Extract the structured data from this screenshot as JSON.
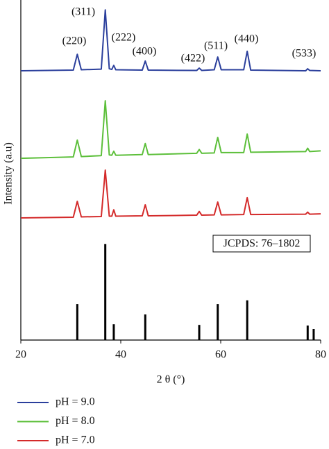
{
  "chart_data": {
    "type": "line",
    "x_label": "2 θ (°)",
    "y_label": "Intensity (a.u)",
    "xlim": [
      20,
      80
    ],
    "xticks": [
      20,
      40,
      60,
      80
    ],
    "ylim": [
      0,
      100
    ],
    "annotations": [
      "(220)",
      "(311)",
      "(222)",
      "(400)",
      "(422)",
      "(511)",
      "(440)",
      "(533)"
    ],
    "x": [
      20,
      30.5,
      31.3,
      32.1,
      36.1,
      36.9,
      37.7,
      38.2,
      38.6,
      39.0,
      44.3,
      44.9,
      45.5,
      55.2,
      55.7,
      56.2,
      58.7,
      59.4,
      60.1,
      64.6,
      65.3,
      66.0,
      77.0,
      77.4,
      77.8,
      80
    ],
    "series": [
      {
        "name": "pH = 9.0",
        "color": "#2b3f9c",
        "values": [
          80.0,
          80.2,
          84.9,
          80.3,
          80.5,
          98.1,
          80.6,
          80.4,
          81.6,
          80.3,
          80.2,
          82.9,
          80.2,
          80.1,
          80.8,
          80.1,
          80.3,
          84.1,
          80.3,
          80.3,
          85.8,
          80.2,
          80.0,
          80.6,
          80.1,
          80.0
        ]
      },
      {
        "name": "pH = 8.0",
        "color": "#5cbf3a",
        "values": [
          54.0,
          54.4,
          59.4,
          54.5,
          54.8,
          71.1,
          55.0,
          54.9,
          56.1,
          54.9,
          55.1,
          58.4,
          55.1,
          55.5,
          56.6,
          55.5,
          55.6,
          60.2,
          55.7,
          55.7,
          61.2,
          55.8,
          56.0,
          57.0,
          56.0,
          56.2
        ]
      },
      {
        "name": "pH = 7.0",
        "color": "#d42a2a",
        "values": [
          36.3,
          36.5,
          41.2,
          36.6,
          36.7,
          50.5,
          36.8,
          36.8,
          38.7,
          36.8,
          36.9,
          40.2,
          36.9,
          37.1,
          38.2,
          37.1,
          37.2,
          41.0,
          37.2,
          37.3,
          42.3,
          37.3,
          37.4,
          38.0,
          37.4,
          37.5
        ]
      }
    ],
    "reference": {
      "name": "JCPDS: 76–1802",
      "color": "#000000",
      "x": [
        31.3,
        36.9,
        38.6,
        44.9,
        55.7,
        59.4,
        65.3,
        77.4,
        78.6
      ],
      "values": [
        10.7,
        28.5,
        4.7,
        7.6,
        4.5,
        10.7,
        11.8,
        4.3,
        3.3
      ]
    }
  }
}
